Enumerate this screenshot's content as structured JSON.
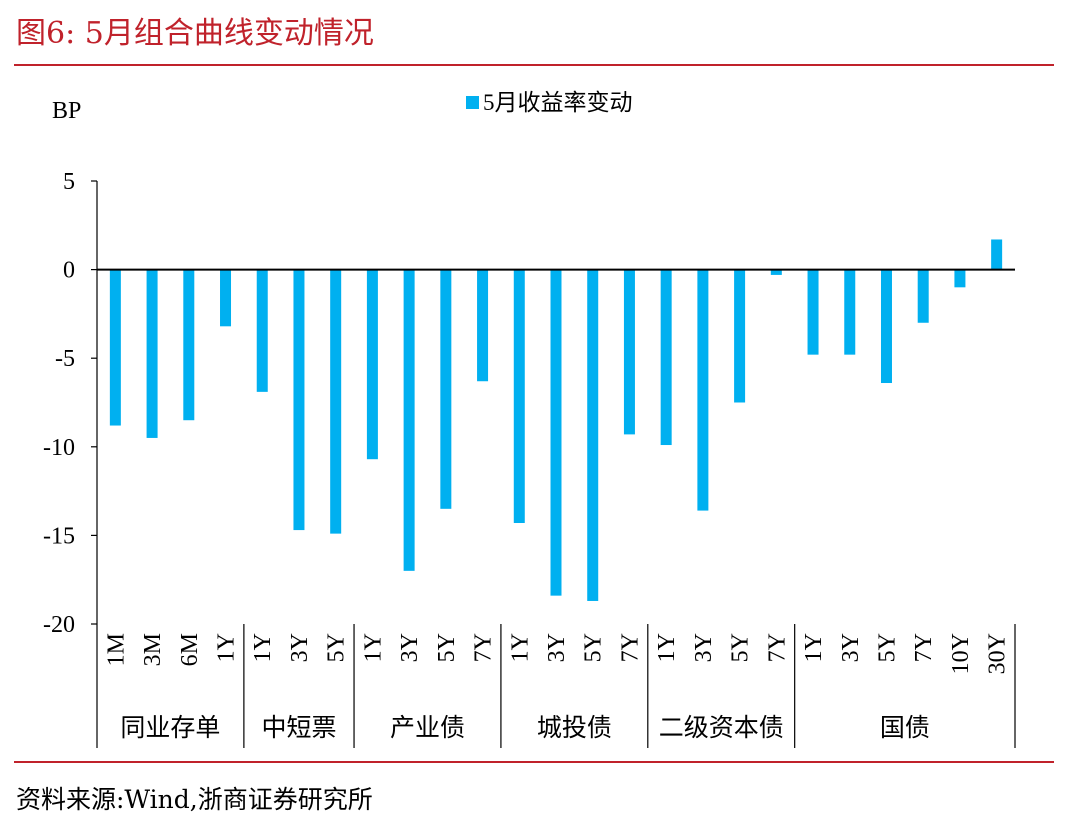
{
  "header": {
    "title": "图6:  5月组合曲线变动情况"
  },
  "footer": {
    "source": "资料来源:Wind,浙商证券研究所"
  },
  "colors": {
    "accent": "#c0222b",
    "bar": "#00b0f0"
  },
  "chart_data": {
    "type": "bar",
    "ylabel": "BP",
    "ylim": [
      -20,
      5
    ],
    "yticks": [
      5,
      0,
      -5,
      -10,
      -15,
      -20
    ],
    "legend": {
      "position": "top-center"
    },
    "grid": false,
    "groups": [
      {
        "name": "同业存单",
        "categories": [
          "1M",
          "3M",
          "6M",
          "1Y"
        ]
      },
      {
        "name": "中短票",
        "categories": [
          "1Y",
          "3Y",
          "5Y"
        ]
      },
      {
        "name": "产业债",
        "categories": [
          "1Y",
          "3Y",
          "5Y",
          "7Y"
        ]
      },
      {
        "name": "城投债",
        "categories": [
          "1Y",
          "3Y",
          "5Y",
          "7Y"
        ]
      },
      {
        "name": "二级资本债",
        "categories": [
          "1Y",
          "3Y",
          "5Y",
          "7Y"
        ]
      },
      {
        "name": "国债",
        "categories": [
          "1Y",
          "3Y",
          "5Y",
          "7Y",
          "10Y",
          "30Y"
        ]
      }
    ],
    "categories": [
      "1M",
      "3M",
      "6M",
      "1Y",
      "1Y",
      "3Y",
      "5Y",
      "1Y",
      "3Y",
      "5Y",
      "7Y",
      "1Y",
      "3Y",
      "5Y",
      "7Y",
      "1Y",
      "3Y",
      "5Y",
      "7Y",
      "1Y",
      "3Y",
      "5Y",
      "7Y",
      "10Y",
      "30Y"
    ],
    "series": [
      {
        "name": "5月收益率变动",
        "values": [
          -8.8,
          -9.5,
          -8.5,
          -3.2,
          -6.9,
          -14.7,
          -14.9,
          -10.7,
          -17.0,
          -13.5,
          -6.3,
          -14.3,
          -18.4,
          -18.7,
          -9.3,
          -9.9,
          -13.6,
          -7.5,
          -0.3,
          -4.8,
          -4.8,
          -6.4,
          -3.0,
          -1.0,
          1.7
        ]
      }
    ]
  }
}
